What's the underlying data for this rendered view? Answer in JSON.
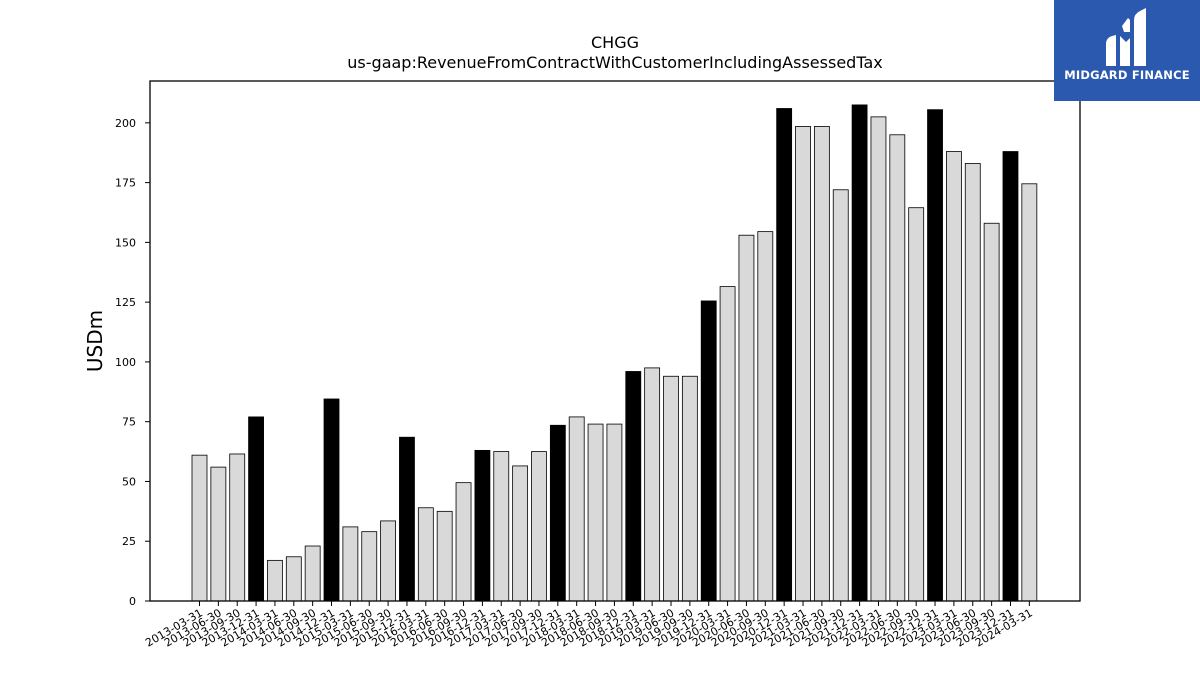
{
  "brand": {
    "name": "MIDGARD FINANCE",
    "logo_icon": "midgard-m-logo-icon",
    "background": "#2b59b0"
  },
  "chart_data": {
    "type": "bar",
    "title": "CHGG",
    "subtitle": "us-gaap:RevenueFromContractWithCustomerIncludingAssessedTax",
    "xlabel": "",
    "ylabel": "USDm",
    "ylim": [
      0,
      217.5
    ],
    "yticks": [
      0,
      25,
      50,
      75,
      100,
      125,
      150,
      175,
      200
    ],
    "grid": false,
    "colors": {
      "quarter": "#d9d9d9",
      "annual": "#000000",
      "edge": "#000000"
    },
    "categories": [
      "2013-03-31",
      "2013-06-30",
      "2013-09-30",
      "2013-12-31",
      "2014-03-31",
      "2014-06-30",
      "2014-09-30",
      "2014-12-31",
      "2015-03-31",
      "2015-06-30",
      "2015-09-30",
      "2015-12-31",
      "2016-03-31",
      "2016-06-30",
      "2016-09-30",
      "2016-12-31",
      "2017-03-31",
      "2017-06-30",
      "2017-09-30",
      "2017-12-31",
      "2018-03-31",
      "2018-06-30",
      "2018-09-30",
      "2018-12-31",
      "2019-03-31",
      "2019-06-30",
      "2019-09-30",
      "2019-12-31",
      "2020-03-31",
      "2020-06-30",
      "2020-09-30",
      "2020-12-31",
      "2021-03-31",
      "2021-06-30",
      "2021-09-30",
      "2021-12-31",
      "2022-03-31",
      "2022-06-30",
      "2022-09-30",
      "2022-12-31",
      "2023-03-31",
      "2023-06-30",
      "2023-09-30",
      "2023-12-31",
      "2024-03-31"
    ],
    "values": [
      61,
      56,
      61.5,
      77,
      17,
      18.5,
      23,
      84.5,
      31,
      29,
      33.5,
      68.5,
      39,
      37.5,
      49.5,
      63,
      62.5,
      56.5,
      62.5,
      73.5,
      77,
      74,
      74,
      96,
      97.5,
      94,
      94,
      125.5,
      131.5,
      153,
      154.5,
      206,
      198.5,
      198.5,
      172,
      207.5,
      202.5,
      195,
      164.5,
      205.5,
      188,
      183,
      158,
      188,
      174.5
    ],
    "highlight": [
      false,
      false,
      false,
      true,
      false,
      false,
      false,
      true,
      false,
      false,
      false,
      true,
      false,
      false,
      false,
      true,
      false,
      false,
      false,
      true,
      false,
      false,
      false,
      true,
      false,
      false,
      false,
      true,
      false,
      false,
      false,
      true,
      false,
      false,
      false,
      true,
      false,
      false,
      false,
      true,
      false,
      false,
      false,
      true,
      false
    ]
  }
}
